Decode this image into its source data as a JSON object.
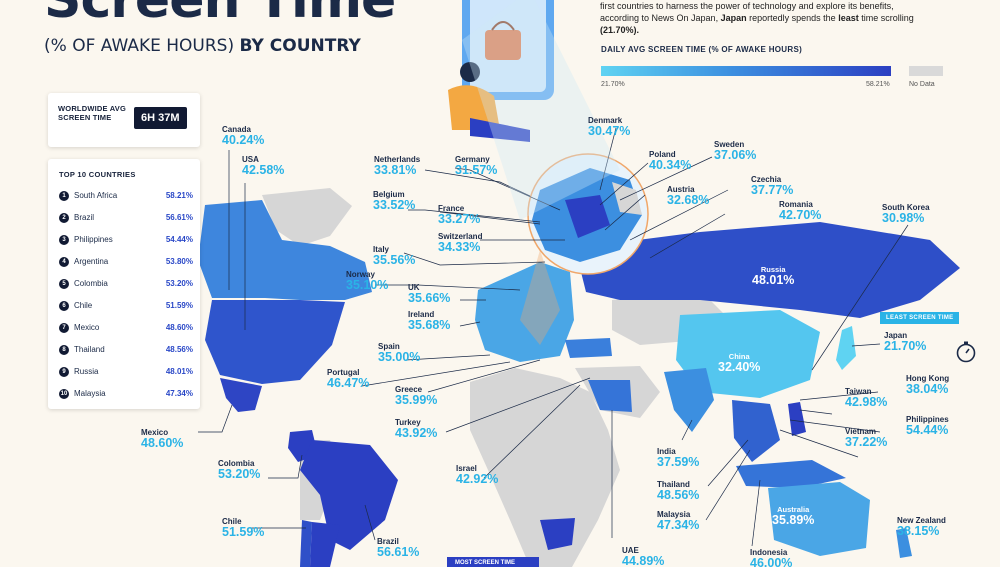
{
  "title": "Screen Time",
  "subtitle_paren": "(% OF AWAKE HOURS)",
  "subtitle_rest": "BY COUNTRY",
  "intro": {
    "line1": "first countries to harness the power of technology and explore its benefits,",
    "line2_a": "according to News On Japan,",
    "line2_b": "Japan",
    "line2_c": "reportedly spends the",
    "line2_d": "least",
    "line2_e": "time scrolling",
    "line3": "(21.70%)."
  },
  "legend": {
    "title": "DAILY AVG SCREEN TIME (% OF AWAKE HOURS)",
    "min": "21.70%",
    "max": "58.21%",
    "no_data": "No Data",
    "colors": {
      "low": "#5fd3f2",
      "mid": "#3c8fe0",
      "high": "#2b3fc2",
      "no_data": "#d9d9d9"
    }
  },
  "worldwide": {
    "label": "WORLDWIDE AVG SCREEN TIME",
    "value": "6H 37M"
  },
  "top10": {
    "title": "TOP 10 COUNTRIES",
    "rows": [
      {
        "rank": "1",
        "country": "South Africa",
        "value": "58.21%"
      },
      {
        "rank": "2",
        "country": "Brazil",
        "value": "56.61%"
      },
      {
        "rank": "3",
        "country": "Philippines",
        "value": "54.44%"
      },
      {
        "rank": "4",
        "country": "Argentina",
        "value": "53.80%"
      },
      {
        "rank": "5",
        "country": "Colombia",
        "value": "53.20%"
      },
      {
        "rank": "6",
        "country": "Chile",
        "value": "51.59%"
      },
      {
        "rank": "7",
        "country": "Mexico",
        "value": "48.60%"
      },
      {
        "rank": "8",
        "country": "Thailand",
        "value": "48.56%"
      },
      {
        "rank": "9",
        "country": "Russia",
        "value": "48.01%"
      },
      {
        "rank": "10",
        "country": "Malaysia",
        "value": "47.34%"
      }
    ]
  },
  "countries": {
    "canada": {
      "name": "Canada",
      "value": "40.24%"
    },
    "usa": {
      "name": "USA",
      "value": "42.58%"
    },
    "mexico": {
      "name": "Mexico",
      "value": "48.60%"
    },
    "colombia": {
      "name": "Colombia",
      "value": "53.20%"
    },
    "chile": {
      "name": "Chile",
      "value": "51.59%"
    },
    "brazil": {
      "name": "Brazil",
      "value": "56.61%"
    },
    "netherlands": {
      "name": "Netherlands",
      "value": "33.81%"
    },
    "germany": {
      "name": "Germany",
      "value": "31.57%"
    },
    "belgium": {
      "name": "Belgium",
      "value": "33.52%"
    },
    "france": {
      "name": "France",
      "value": "33.27%"
    },
    "switzerland": {
      "name": "Switzerland",
      "value": "34.33%"
    },
    "italy": {
      "name": "Italy",
      "value": "35.56%"
    },
    "norway": {
      "name": "Norway",
      "value": "35.10%"
    },
    "uk": {
      "name": "UK",
      "value": "35.66%"
    },
    "ireland": {
      "name": "Ireland",
      "value": "35.68%"
    },
    "spain": {
      "name": "Spain",
      "value": "35.00%"
    },
    "portugal": {
      "name": "Portugal",
      "value": "46.47%"
    },
    "greece": {
      "name": "Greece",
      "value": "35.99%"
    },
    "turkey": {
      "name": "Turkey",
      "value": "43.92%"
    },
    "israel": {
      "name": "Israel",
      "value": "42.92%"
    },
    "uae": {
      "name": "UAE",
      "value": "44.89%"
    },
    "denmark": {
      "name": "Denmark",
      "value": "30.47%"
    },
    "poland": {
      "name": "Poland",
      "value": "40.34%"
    },
    "sweden": {
      "name": "Sweden",
      "value": "37.06%"
    },
    "austria": {
      "name": "Austria",
      "value": "32.68%"
    },
    "czechia": {
      "name": "Czechia",
      "value": "37.77%"
    },
    "romania": {
      "name": "Romania",
      "value": "42.70%"
    },
    "south_korea": {
      "name": "South Korea",
      "value": "30.98%"
    },
    "russia": {
      "name": "Russia",
      "value": "48.01%"
    },
    "japan": {
      "name": "Japan",
      "value": "21.70%"
    },
    "china": {
      "name": "China",
      "value": "32.40%"
    },
    "hong_kong": {
      "name": "Hong Kong",
      "value": "38.04%"
    },
    "taiwan": {
      "name": "Taiwan",
      "value": "42.98%"
    },
    "philippines": {
      "name": "Philippines",
      "value": "54.44%"
    },
    "vietnam": {
      "name": "Vietnam",
      "value": "37.22%"
    },
    "india": {
      "name": "India",
      "value": "37.59%"
    },
    "thailand": {
      "name": "Thailand",
      "value": "48.56%"
    },
    "malaysia": {
      "name": "Malaysia",
      "value": "47.34%"
    },
    "indonesia": {
      "name": "Indonesia",
      "value": "46.00%"
    },
    "australia": {
      "name": "Australia",
      "value": "35.89%"
    },
    "new_zealand": {
      "name": "New Zealand",
      "value": "38.15%"
    }
  },
  "least_tag": "LEAST SCREEN TIME",
  "most_tag": "MOST SCREEN TIME"
}
